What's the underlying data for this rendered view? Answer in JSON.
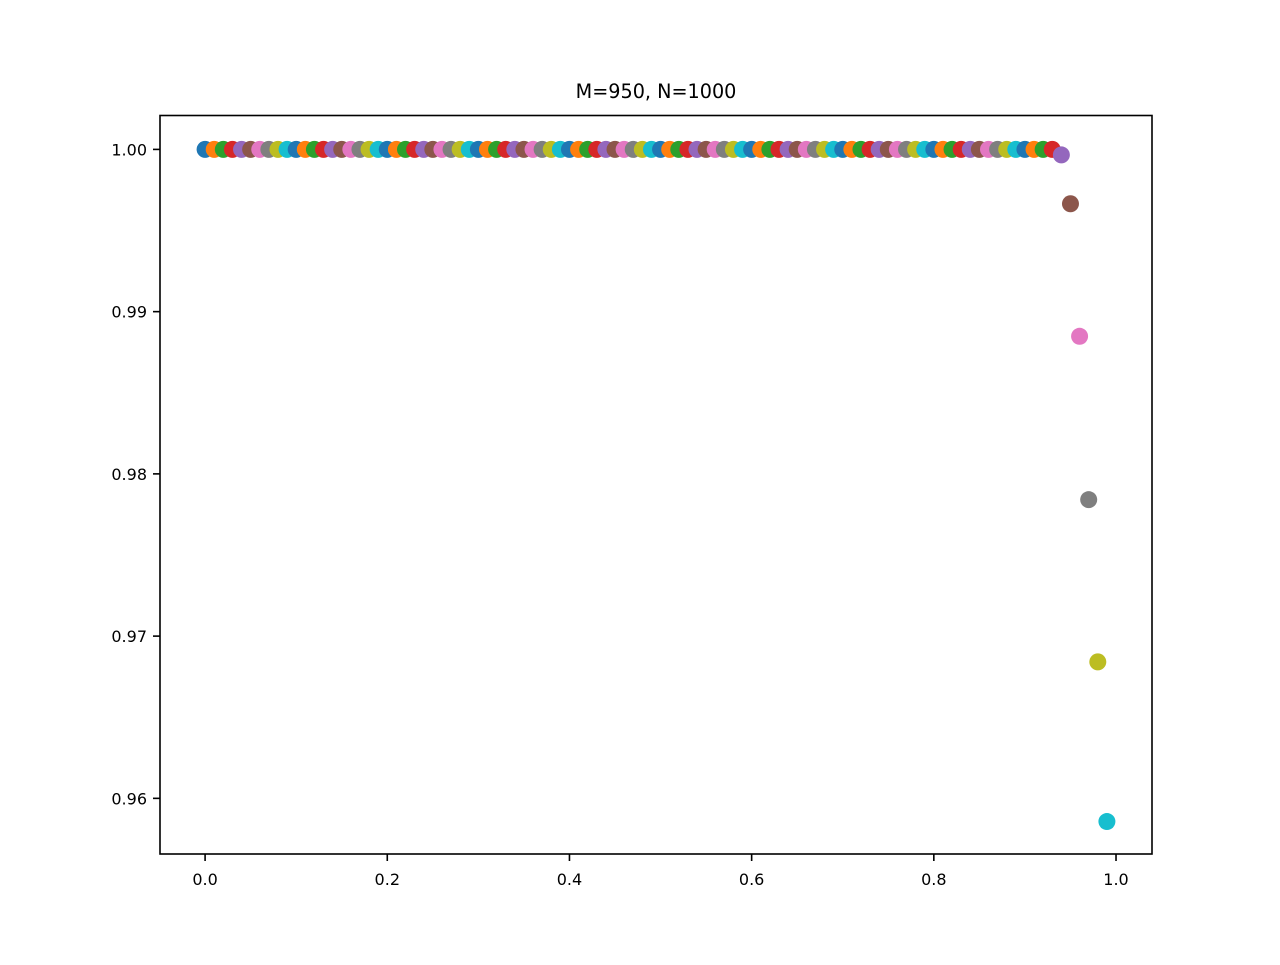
{
  "chart_data": {
    "type": "scatter",
    "title": "M=950, N=1000",
    "xlabel": "",
    "ylabel": "",
    "xlim": [
      -0.0495,
      1.0395
    ],
    "ylim": [
      0.95657,
      1.00209
    ],
    "xticks": [
      0.0,
      0.2,
      0.4,
      0.6,
      0.8,
      1.0
    ],
    "xtick_labels": [
      "0.0",
      "0.2",
      "0.4",
      "0.6",
      "0.8",
      "1.0"
    ],
    "yticks": [
      0.96,
      0.97,
      0.98,
      0.99,
      1.0
    ],
    "ytick_labels": [
      "0.96",
      "0.97",
      "0.98",
      "0.99",
      "1.00"
    ],
    "grid": false,
    "legend": "none",
    "color_cycle": [
      "#1f77b4",
      "#ff7f0e",
      "#2ca02c",
      "#d62728",
      "#9467bd",
      "#8c564b",
      "#e377c2",
      "#7f7f7f",
      "#bcbd22",
      "#17becf"
    ],
    "points": [
      {
        "x": 0.0,
        "y": 1.0
      },
      {
        "x": 0.01,
        "y": 1.0
      },
      {
        "x": 0.02,
        "y": 1.0
      },
      {
        "x": 0.03,
        "y": 1.0
      },
      {
        "x": 0.04,
        "y": 1.0
      },
      {
        "x": 0.05,
        "y": 1.0
      },
      {
        "x": 0.06,
        "y": 1.0
      },
      {
        "x": 0.07,
        "y": 1.0
      },
      {
        "x": 0.08,
        "y": 1.0
      },
      {
        "x": 0.09,
        "y": 1.0
      },
      {
        "x": 0.1,
        "y": 1.0
      },
      {
        "x": 0.11,
        "y": 1.0
      },
      {
        "x": 0.12,
        "y": 1.0
      },
      {
        "x": 0.13,
        "y": 1.0
      },
      {
        "x": 0.14,
        "y": 1.0
      },
      {
        "x": 0.15,
        "y": 1.0
      },
      {
        "x": 0.16,
        "y": 1.0
      },
      {
        "x": 0.17,
        "y": 1.0
      },
      {
        "x": 0.18,
        "y": 1.0
      },
      {
        "x": 0.19,
        "y": 1.0
      },
      {
        "x": 0.2,
        "y": 1.0
      },
      {
        "x": 0.21,
        "y": 1.0
      },
      {
        "x": 0.22,
        "y": 1.0
      },
      {
        "x": 0.23,
        "y": 1.0
      },
      {
        "x": 0.24,
        "y": 1.0
      },
      {
        "x": 0.25,
        "y": 1.0
      },
      {
        "x": 0.26,
        "y": 1.0
      },
      {
        "x": 0.27,
        "y": 1.0
      },
      {
        "x": 0.28,
        "y": 1.0
      },
      {
        "x": 0.29,
        "y": 1.0
      },
      {
        "x": 0.3,
        "y": 1.0
      },
      {
        "x": 0.31,
        "y": 1.0
      },
      {
        "x": 0.32,
        "y": 1.0
      },
      {
        "x": 0.33,
        "y": 1.0
      },
      {
        "x": 0.34,
        "y": 1.0
      },
      {
        "x": 0.35,
        "y": 1.0
      },
      {
        "x": 0.36,
        "y": 1.0
      },
      {
        "x": 0.37,
        "y": 1.0
      },
      {
        "x": 0.38,
        "y": 1.0
      },
      {
        "x": 0.39,
        "y": 1.0
      },
      {
        "x": 0.4,
        "y": 1.0
      },
      {
        "x": 0.41,
        "y": 1.0
      },
      {
        "x": 0.42,
        "y": 1.0
      },
      {
        "x": 0.43,
        "y": 1.0
      },
      {
        "x": 0.44,
        "y": 1.0
      },
      {
        "x": 0.45,
        "y": 1.0
      },
      {
        "x": 0.46,
        "y": 1.0
      },
      {
        "x": 0.47,
        "y": 1.0
      },
      {
        "x": 0.48,
        "y": 1.0
      },
      {
        "x": 0.49,
        "y": 1.0
      },
      {
        "x": 0.5,
        "y": 1.0
      },
      {
        "x": 0.51,
        "y": 1.0
      },
      {
        "x": 0.52,
        "y": 1.0
      },
      {
        "x": 0.53,
        "y": 1.0
      },
      {
        "x": 0.54,
        "y": 1.0
      },
      {
        "x": 0.55,
        "y": 1.0
      },
      {
        "x": 0.56,
        "y": 1.0
      },
      {
        "x": 0.57,
        "y": 1.0
      },
      {
        "x": 0.58,
        "y": 1.0
      },
      {
        "x": 0.59,
        "y": 1.0
      },
      {
        "x": 0.6,
        "y": 1.0
      },
      {
        "x": 0.61,
        "y": 1.0
      },
      {
        "x": 0.62,
        "y": 1.0
      },
      {
        "x": 0.63,
        "y": 1.0
      },
      {
        "x": 0.64,
        "y": 1.0
      },
      {
        "x": 0.65,
        "y": 1.0
      },
      {
        "x": 0.66,
        "y": 1.0
      },
      {
        "x": 0.67,
        "y": 1.0
      },
      {
        "x": 0.68,
        "y": 1.0
      },
      {
        "x": 0.69,
        "y": 1.0
      },
      {
        "x": 0.7,
        "y": 1.0
      },
      {
        "x": 0.71,
        "y": 1.0
      },
      {
        "x": 0.72,
        "y": 1.0
      },
      {
        "x": 0.73,
        "y": 1.0
      },
      {
        "x": 0.74,
        "y": 1.0
      },
      {
        "x": 0.75,
        "y": 1.0
      },
      {
        "x": 0.76,
        "y": 1.0
      },
      {
        "x": 0.77,
        "y": 1.0
      },
      {
        "x": 0.78,
        "y": 1.0
      },
      {
        "x": 0.79,
        "y": 1.0
      },
      {
        "x": 0.8,
        "y": 1.0
      },
      {
        "x": 0.81,
        "y": 1.0
      },
      {
        "x": 0.82,
        "y": 1.0
      },
      {
        "x": 0.83,
        "y": 1.0
      },
      {
        "x": 0.84,
        "y": 1.0
      },
      {
        "x": 0.85,
        "y": 1.0
      },
      {
        "x": 0.86,
        "y": 1.0
      },
      {
        "x": 0.87,
        "y": 1.0
      },
      {
        "x": 0.88,
        "y": 1.0
      },
      {
        "x": 0.89,
        "y": 1.0
      },
      {
        "x": 0.9,
        "y": 1.0
      },
      {
        "x": 0.91,
        "y": 1.0
      },
      {
        "x": 0.92,
        "y": 1.0
      },
      {
        "x": 0.93,
        "y": 1.0
      },
      {
        "x": 0.94,
        "y": 0.99966
      },
      {
        "x": 0.95,
        "y": 0.99665
      },
      {
        "x": 0.96,
        "y": 0.98848
      },
      {
        "x": 0.97,
        "y": 0.97841
      },
      {
        "x": 0.98,
        "y": 0.96841
      },
      {
        "x": 0.99,
        "y": 0.95857
      }
    ]
  }
}
